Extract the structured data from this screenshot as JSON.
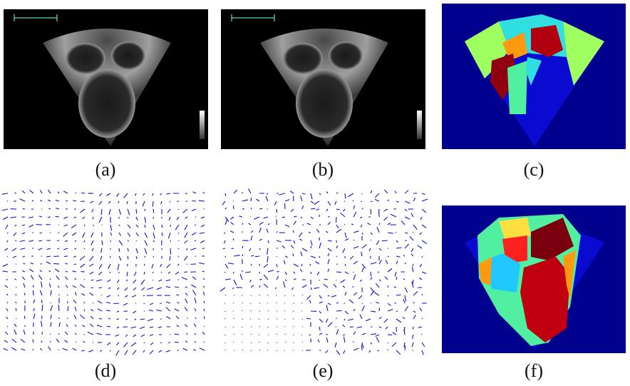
{
  "panels": [
    {
      "caption": "(a)"
    },
    {
      "caption": "(b)"
    },
    {
      "caption": "(c)"
    },
    {
      "caption": "(d)"
    },
    {
      "caption": "(e)"
    },
    {
      "caption": "(f)"
    }
  ]
}
